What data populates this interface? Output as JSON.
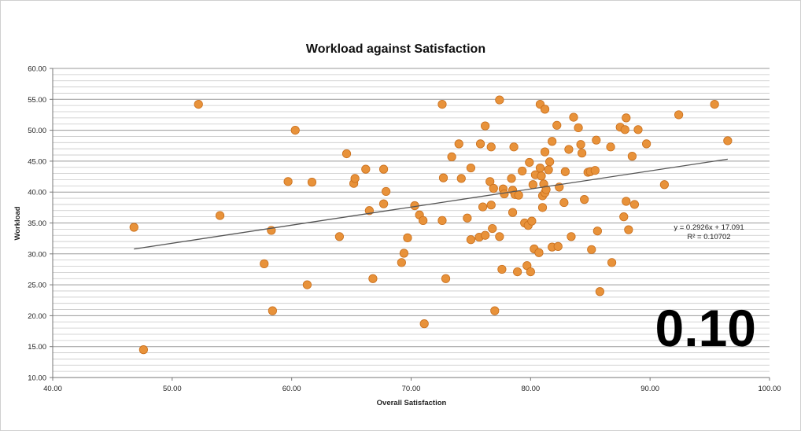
{
  "chart_data": {
    "type": "scatter",
    "title": "Workload against Satisfaction",
    "xlabel": "Overall Satisfaction",
    "ylabel": "Workload",
    "xlim": [
      40,
      100
    ],
    "ylim": [
      10,
      60
    ],
    "x_ticks": [
      "40.00",
      "50.00",
      "60.00",
      "70.00",
      "80.00",
      "90.00",
      "100.00"
    ],
    "y_ticks": [
      "10.00",
      "15.00",
      "20.00",
      "25.00",
      "30.00",
      "35.00",
      "40.00",
      "45.00",
      "50.00",
      "55.00",
      "60.00"
    ],
    "grid": "horizontal",
    "marker_color": "#e8923a",
    "trendline": {
      "slope": 0.2926,
      "intercept": 17.091,
      "x_range": [
        46.8,
        96.5
      ],
      "equation": "y = 0.2926x + 17.091",
      "r2": "R² = 0.10702"
    },
    "points": [
      [
        46.8,
        34.3
      ],
      [
        47.6,
        14.5
      ],
      [
        52.2,
        54.2
      ],
      [
        54.0,
        36.2
      ],
      [
        57.7,
        28.4
      ],
      [
        58.3,
        33.8
      ],
      [
        58.4,
        20.8
      ],
      [
        59.7,
        41.7
      ],
      [
        60.3,
        50.0
      ],
      [
        61.3,
        25.0
      ],
      [
        61.7,
        41.6
      ],
      [
        64.0,
        32.8
      ],
      [
        64.6,
        46.2
      ],
      [
        65.2,
        41.4
      ],
      [
        65.3,
        42.2
      ],
      [
        66.2,
        43.7
      ],
      [
        66.5,
        37.0
      ],
      [
        66.8,
        26.0
      ],
      [
        67.7,
        43.7
      ],
      [
        67.7,
        38.1
      ],
      [
        67.9,
        40.1
      ],
      [
        69.2,
        28.6
      ],
      [
        69.4,
        30.1
      ],
      [
        69.7,
        32.6
      ],
      [
        70.3,
        37.8
      ],
      [
        70.7,
        36.3
      ],
      [
        71.0,
        35.4
      ],
      [
        71.1,
        18.7
      ],
      [
        72.6,
        35.4
      ],
      [
        72.6,
        54.2
      ],
      [
        72.7,
        42.3
      ],
      [
        72.9,
        26.0
      ],
      [
        73.4,
        45.7
      ],
      [
        74.0,
        47.8
      ],
      [
        74.2,
        42.2
      ],
      [
        74.7,
        35.8
      ],
      [
        75.0,
        43.9
      ],
      [
        75.0,
        32.3
      ],
      [
        75.7,
        32.7
      ],
      [
        75.8,
        47.8
      ],
      [
        76.0,
        37.6
      ],
      [
        76.2,
        50.7
      ],
      [
        76.2,
        33.0
      ],
      [
        76.6,
        41.7
      ],
      [
        76.7,
        47.3
      ],
      [
        76.7,
        37.9
      ],
      [
        76.8,
        34.1
      ],
      [
        76.9,
        40.6
      ],
      [
        77.0,
        20.8
      ],
      [
        77.4,
        54.9
      ],
      [
        77.4,
        32.8
      ],
      [
        77.6,
        27.5
      ],
      [
        77.7,
        40.5
      ],
      [
        77.8,
        39.7
      ],
      [
        78.4,
        42.2
      ],
      [
        78.5,
        40.3
      ],
      [
        78.5,
        36.7
      ],
      [
        78.6,
        47.3
      ],
      [
        78.7,
        39.6
      ],
      [
        78.9,
        27.1
      ],
      [
        79.0,
        39.5
      ],
      [
        79.3,
        43.4
      ],
      [
        79.5,
        35.0
      ],
      [
        79.7,
        28.1
      ],
      [
        79.8,
        34.6
      ],
      [
        79.9,
        44.8
      ],
      [
        80.0,
        27.1
      ],
      [
        80.1,
        35.3
      ],
      [
        80.2,
        41.2
      ],
      [
        80.3,
        30.8
      ],
      [
        80.4,
        42.8
      ],
      [
        80.7,
        30.2
      ],
      [
        80.8,
        43.9
      ],
      [
        80.8,
        54.2
      ],
      [
        80.9,
        42.6
      ],
      [
        81.0,
        39.4
      ],
      [
        81.0,
        37.5
      ],
      [
        81.1,
        41.3
      ],
      [
        81.2,
        46.5
      ],
      [
        81.2,
        53.4
      ],
      [
        81.2,
        39.9
      ],
      [
        81.3,
        40.4
      ],
      [
        81.5,
        43.6
      ],
      [
        81.6,
        44.9
      ],
      [
        81.8,
        48.2
      ],
      [
        81.8,
        31.1
      ],
      [
        82.2,
        50.8
      ],
      [
        82.3,
        31.2
      ],
      [
        82.4,
        40.8
      ],
      [
        82.8,
        38.3
      ],
      [
        82.9,
        43.3
      ],
      [
        83.2,
        46.9
      ],
      [
        83.4,
        32.8
      ],
      [
        83.6,
        52.1
      ],
      [
        84.0,
        50.4
      ],
      [
        84.2,
        47.7
      ],
      [
        84.3,
        46.3
      ],
      [
        84.5,
        38.8
      ],
      [
        84.8,
        43.2
      ],
      [
        85.0,
        43.3
      ],
      [
        85.1,
        30.7
      ],
      [
        85.4,
        43.5
      ],
      [
        85.5,
        48.4
      ],
      [
        85.6,
        33.7
      ],
      [
        85.8,
        23.9
      ],
      [
        86.7,
        47.3
      ],
      [
        86.8,
        28.6
      ],
      [
        87.5,
        50.5
      ],
      [
        87.8,
        36.0
      ],
      [
        87.9,
        50.1
      ],
      [
        88.0,
        52.0
      ],
      [
        88.0,
        38.5
      ],
      [
        88.2,
        33.9
      ],
      [
        88.5,
        45.8
      ],
      [
        88.7,
        38.0
      ],
      [
        89.0,
        50.1
      ],
      [
        89.7,
        47.8
      ],
      [
        91.2,
        41.2
      ],
      [
        92.4,
        52.5
      ],
      [
        95.4,
        54.2
      ],
      [
        96.5,
        48.3
      ]
    ]
  },
  "overlay": {
    "value_label": "0.10"
  }
}
